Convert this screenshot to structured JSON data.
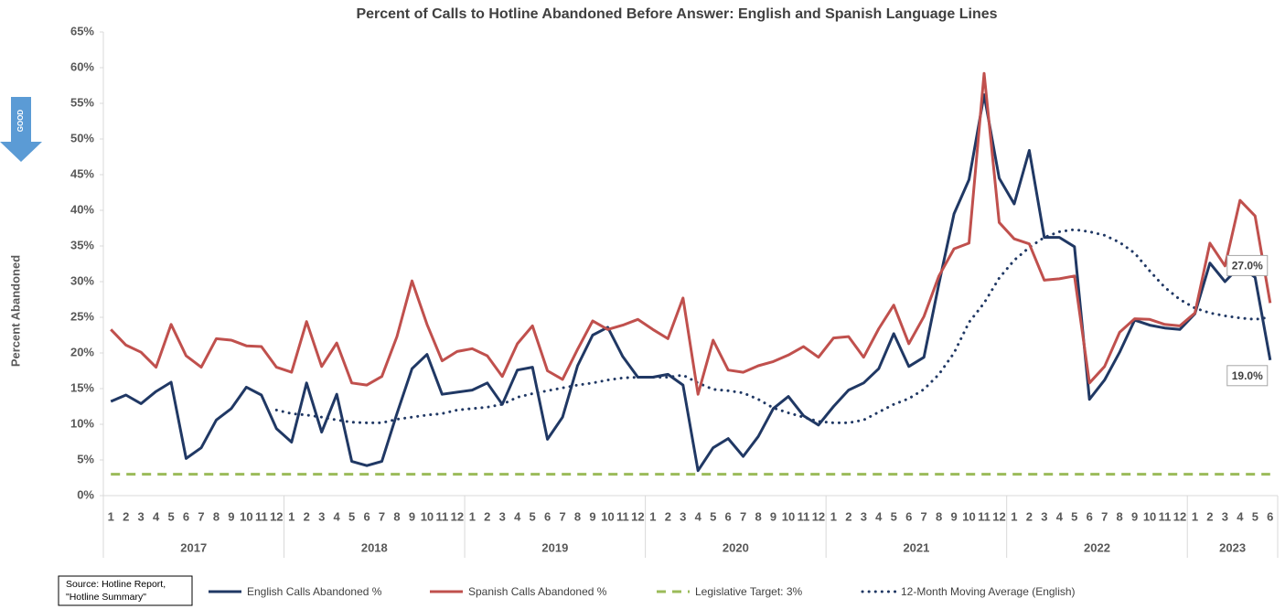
{
  "chart_data": {
    "type": "line",
    "title": "Percent of Calls to Hotline Abandoned Before Answer: English and Spanish Language Lines",
    "y_label": "Percent Abandoned",
    "indicator": "GOOD",
    "source": [
      "Source: Hotline Report,",
      "\"Hotline Summary\""
    ],
    "categories": [
      1,
      2,
      3,
      4,
      5,
      6,
      7,
      8,
      9,
      10,
      11,
      12,
      1,
      2,
      3,
      4,
      5,
      6,
      7,
      8,
      9,
      10,
      11,
      12,
      1,
      2,
      3,
      4,
      5,
      6,
      7,
      8,
      9,
      10,
      11,
      12,
      1,
      2,
      3,
      4,
      5,
      6,
      7,
      8,
      9,
      10,
      11,
      12,
      1,
      2,
      3,
      4,
      5,
      6,
      7,
      8,
      9,
      10,
      11,
      12,
      1,
      2,
      3,
      4,
      5,
      6,
      7,
      8,
      9,
      10,
      11,
      12,
      1,
      2,
      3,
      4,
      5,
      6
    ],
    "years": [
      "2017",
      "2018",
      "2019",
      "2020",
      "2021",
      "2022",
      "2023"
    ],
    "ylim": [
      0,
      65
    ],
    "yticks": [
      {
        "value": 0,
        "label": "0%"
      },
      {
        "value": 5,
        "label": "5%"
      },
      {
        "value": 10,
        "label": "10%"
      },
      {
        "value": 15,
        "label": "15%"
      },
      {
        "value": 20,
        "label": "20%"
      },
      {
        "value": 25,
        "label": "25%"
      },
      {
        "value": 30,
        "label": "30%"
      },
      {
        "value": 35,
        "label": "35%"
      },
      {
        "value": 40,
        "label": "40%"
      },
      {
        "value": 45,
        "label": "45%"
      },
      {
        "value": 50,
        "label": "50%"
      },
      {
        "value": 55,
        "label": "55%"
      },
      {
        "value": 60,
        "label": "60%"
      },
      {
        "value": 65,
        "label": "65%"
      }
    ],
    "series": [
      {
        "name": "English Calls Abandoned %",
        "color": "#203864",
        "style": "solid",
        "values": [
          13.2,
          14.1,
          12.9,
          14.6,
          15.9,
          5.2,
          6.7,
          10.6,
          12.2,
          15.2,
          14.1,
          9.4,
          7.5,
          15.8,
          8.9,
          14.2,
          4.8,
          4.2,
          4.8,
          11.5,
          17.8,
          19.8,
          14.2,
          14.5,
          14.8,
          15.8,
          12.8,
          17.6,
          18.0,
          7.9,
          11.0,
          18.2,
          22.5,
          23.6,
          19.5,
          16.6,
          16.6,
          17.0,
          15.5,
          3.5,
          6.7,
          8.0,
          5.5,
          8.3,
          12.2,
          13.9,
          11.2,
          9.9,
          12.5,
          14.8,
          15.8,
          17.8,
          22.7,
          18.1,
          19.4,
          29.7,
          39.5,
          44.3,
          56.2,
          44.5,
          40.9,
          48.4,
          36.2,
          36.2,
          34.9,
          13.5,
          16.2,
          20.1,
          24.6,
          23.9,
          23.5,
          23.3,
          25.5,
          32.6,
          30.0,
          32.2,
          30.6,
          19.0
        ],
        "value_labels": [
          null,
          null,
          null,
          null,
          null,
          null,
          null,
          null,
          null,
          null,
          null,
          null,
          null,
          null,
          null,
          null,
          null,
          null,
          null,
          null,
          null,
          null,
          null,
          null,
          null,
          null,
          null,
          null,
          null,
          null,
          null,
          null,
          null,
          null,
          null,
          null,
          null,
          null,
          null,
          null,
          null,
          null,
          null,
          null,
          null,
          null,
          null,
          null,
          null,
          null,
          null,
          null,
          null,
          null,
          null,
          null,
          null,
          null,
          null,
          null,
          null,
          null,
          null,
          null,
          null,
          null,
          null,
          null,
          null,
          null,
          null,
          null,
          null,
          null,
          null,
          null,
          null,
          "19.0%"
        ]
      },
      {
        "name": "Spanish Calls Abandoned %",
        "color": "#c0504d",
        "style": "solid",
        "values": [
          23.3,
          21.1,
          20.1,
          18.0,
          24.0,
          19.6,
          18.0,
          22.0,
          21.8,
          21.0,
          20.9,
          18.0,
          17.3,
          24.4,
          18.1,
          21.4,
          15.8,
          15.5,
          16.7,
          22.3,
          30.1,
          24.0,
          18.9,
          20.2,
          20.6,
          19.6,
          16.7,
          21.3,
          23.8,
          17.5,
          16.3,
          20.5,
          24.5,
          23.3,
          23.9,
          24.7,
          23.3,
          22.0,
          27.7,
          14.2,
          21.8,
          17.6,
          17.3,
          18.2,
          18.8,
          19.7,
          20.9,
          19.4,
          22.1,
          22.3,
          19.4,
          23.4,
          26.7,
          21.3,
          25.1,
          30.8,
          34.6,
          35.4,
          59.2,
          38.3,
          36.0,
          35.3,
          30.2,
          30.4,
          30.8,
          15.8,
          18.1,
          22.9,
          24.8,
          24.7,
          24.0,
          23.8,
          25.6,
          35.4,
          32.2,
          41.4,
          39.2,
          27.0
        ],
        "value_labels": [
          null,
          null,
          null,
          null,
          null,
          null,
          null,
          null,
          null,
          null,
          null,
          null,
          null,
          null,
          null,
          null,
          null,
          null,
          null,
          null,
          null,
          null,
          null,
          null,
          null,
          null,
          null,
          null,
          null,
          null,
          null,
          null,
          null,
          null,
          null,
          null,
          null,
          null,
          null,
          null,
          null,
          null,
          null,
          null,
          null,
          null,
          null,
          null,
          null,
          null,
          null,
          null,
          null,
          null,
          null,
          null,
          null,
          null,
          null,
          null,
          null,
          null,
          null,
          null,
          null,
          null,
          null,
          null,
          null,
          null,
          null,
          null,
          null,
          null,
          null,
          null,
          null,
          "27.0%"
        ]
      },
      {
        "name": "Legislative Target: 3%",
        "color": "#9bbb59",
        "style": "dashed",
        "values": [
          3,
          3,
          3,
          3,
          3,
          3,
          3,
          3,
          3,
          3,
          3,
          3,
          3,
          3,
          3,
          3,
          3,
          3,
          3,
          3,
          3,
          3,
          3,
          3,
          3,
          3,
          3,
          3,
          3,
          3,
          3,
          3,
          3,
          3,
          3,
          3,
          3,
          3,
          3,
          3,
          3,
          3,
          3,
          3,
          3,
          3,
          3,
          3,
          3,
          3,
          3,
          3,
          3,
          3,
          3,
          3,
          3,
          3,
          3,
          3,
          3,
          3,
          3,
          3,
          3,
          3,
          3,
          3,
          3,
          3,
          3,
          3,
          3,
          3,
          3,
          3,
          3,
          3
        ]
      },
      {
        "name": "12-Month Moving Average (English)",
        "color": "#203864",
        "style": "dotted",
        "values": [
          null,
          null,
          null,
          null,
          null,
          null,
          null,
          null,
          null,
          null,
          null,
          12.0,
          11.5,
          11.3,
          11.0,
          10.6,
          10.3,
          10.2,
          10.2,
          10.7,
          11.0,
          11.3,
          11.5,
          12.0,
          12.2,
          12.4,
          12.8,
          13.8,
          14.3,
          14.7,
          15.1,
          15.5,
          15.8,
          16.2,
          16.5,
          16.6,
          16.6,
          16.6,
          16.9,
          15.8,
          14.9,
          14.7,
          14.4,
          13.5,
          12.3,
          11.6,
          11.0,
          10.4,
          10.2,
          10.2,
          10.6,
          11.7,
          12.8,
          13.6,
          14.9,
          17.0,
          20.0,
          24.3,
          27.0,
          30.5,
          33.0,
          34.8,
          36.2,
          37.0,
          37.3,
          37.0,
          36.5,
          35.5,
          34.0,
          31.5,
          29.2,
          27.5,
          26.3,
          25.6,
          25.2,
          24.9,
          24.7,
          25.0
        ]
      }
    ]
  }
}
